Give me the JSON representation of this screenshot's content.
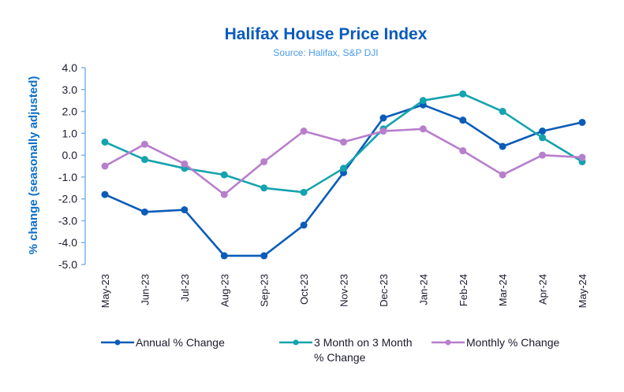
{
  "chart_data": {
    "type": "line",
    "title": "Halifax House Price Index",
    "subtitle": "Source: Halifax, S&P DJI",
    "xlabel": "",
    "ylabel": "% change (seasonally adjusted)",
    "ylim": [
      -5.0,
      4.0
    ],
    "yticks": [
      "4.0",
      "3.0",
      "2.0",
      "1.0",
      "0.0",
      "-1.0",
      "-2.0",
      "-3.0",
      "-4.0",
      "-5.0"
    ],
    "ytick_values": [
      4,
      3,
      2,
      1,
      0,
      -1,
      -2,
      -3,
      -4,
      -5
    ],
    "categories": [
      "May-23",
      "Jun-23",
      "Jul-23",
      "Aug-23",
      "Sep-23",
      "Oct-23",
      "Nov-23",
      "Dec-23",
      "Jan-24",
      "Feb-24",
      "Mar-24",
      "Apr-24",
      "May-24"
    ],
    "grid": false,
    "legend_position": "bottom",
    "series": [
      {
        "name": "Annual % Change",
        "color": "#0a5cb8",
        "values": [
          -1.8,
          -2.6,
          -2.5,
          -4.6,
          -4.6,
          -3.2,
          -0.8,
          1.7,
          2.3,
          1.6,
          0.4,
          1.1,
          1.5
        ]
      },
      {
        "name": "3 Month on 3 Month % Change",
        "legend_lines": [
          "3 Month on 3 Month",
          "% Change"
        ],
        "color": "#15a3ae",
        "values": [
          0.6,
          -0.2,
          -0.6,
          -0.9,
          -1.5,
          -1.7,
          -0.6,
          1.2,
          2.5,
          2.8,
          2.0,
          0.8,
          -0.3
        ]
      },
      {
        "name": "Monthly % Change",
        "color": "#b77fcc",
        "values": [
          -0.5,
          0.5,
          -0.4,
          -1.8,
          -0.3,
          1.1,
          0.6,
          1.1,
          1.2,
          0.2,
          -0.9,
          0.0,
          -0.1
        ]
      }
    ],
    "axis_color": "#7fb3e8"
  }
}
